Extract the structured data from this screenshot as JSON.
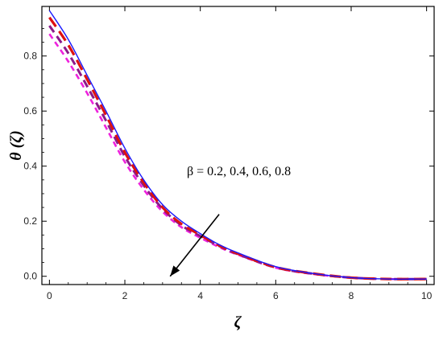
{
  "chart_data": {
    "type": "line",
    "xlabel": "ζ",
    "ylabel": "θ (ζ)",
    "xlim": [
      -0.2,
      10.2
    ],
    "ylim": [
      -0.03,
      0.98
    ],
    "xticks": [
      "0",
      "2",
      "4",
      "6",
      "8",
      "10"
    ],
    "yticks": [
      "0.0",
      "0.2",
      "0.4",
      "0.6",
      "0.8"
    ],
    "xtick_values": [
      0,
      2,
      4,
      6,
      8,
      10
    ],
    "ytick_values": [
      0.0,
      0.2,
      0.4,
      0.6,
      0.8
    ],
    "grid": false,
    "annotation": {
      "text": "β = 0.2, 0.4, 0.6, 0.8",
      "arrow_from": [
        4.5,
        0.225
      ],
      "arrow_to": [
        3.2,
        0.0
      ]
    },
    "x": [
      0,
      0.5,
      1,
      1.5,
      2,
      2.5,
      3,
      3.5,
      4,
      4.5,
      5,
      6,
      7,
      8,
      9,
      10
    ],
    "series": [
      {
        "color": "#1a1aff",
        "dash": "solid",
        "width": 1.4,
        "values": [
          0.965,
          0.86,
          0.73,
          0.6,
          0.465,
          0.35,
          0.26,
          0.2,
          0.155,
          0.115,
          0.085,
          0.035,
          0.01,
          -0.005,
          -0.01,
          -0.01
        ]
      },
      {
        "color": "#dd1111",
        "dash": "long",
        "width": 3.2,
        "values": [
          0.94,
          0.84,
          0.715,
          0.585,
          0.45,
          0.34,
          0.25,
          0.19,
          0.15,
          0.112,
          0.082,
          0.033,
          0.01,
          -0.005,
          -0.01,
          -0.01
        ]
      },
      {
        "color": "#8b1a8b",
        "dash": "medium",
        "width": 3.0,
        "values": [
          0.91,
          0.81,
          0.69,
          0.565,
          0.435,
          0.33,
          0.245,
          0.185,
          0.146,
          0.11,
          0.08,
          0.032,
          0.009,
          -0.005,
          -0.01,
          -0.01
        ]
      },
      {
        "color": "#ee22dd",
        "dash": "short",
        "width": 2.6,
        "values": [
          0.88,
          0.78,
          0.665,
          0.54,
          0.415,
          0.315,
          0.235,
          0.178,
          0.14,
          0.106,
          0.078,
          0.031,
          0.008,
          -0.005,
          -0.01,
          -0.01
        ]
      }
    ]
  }
}
